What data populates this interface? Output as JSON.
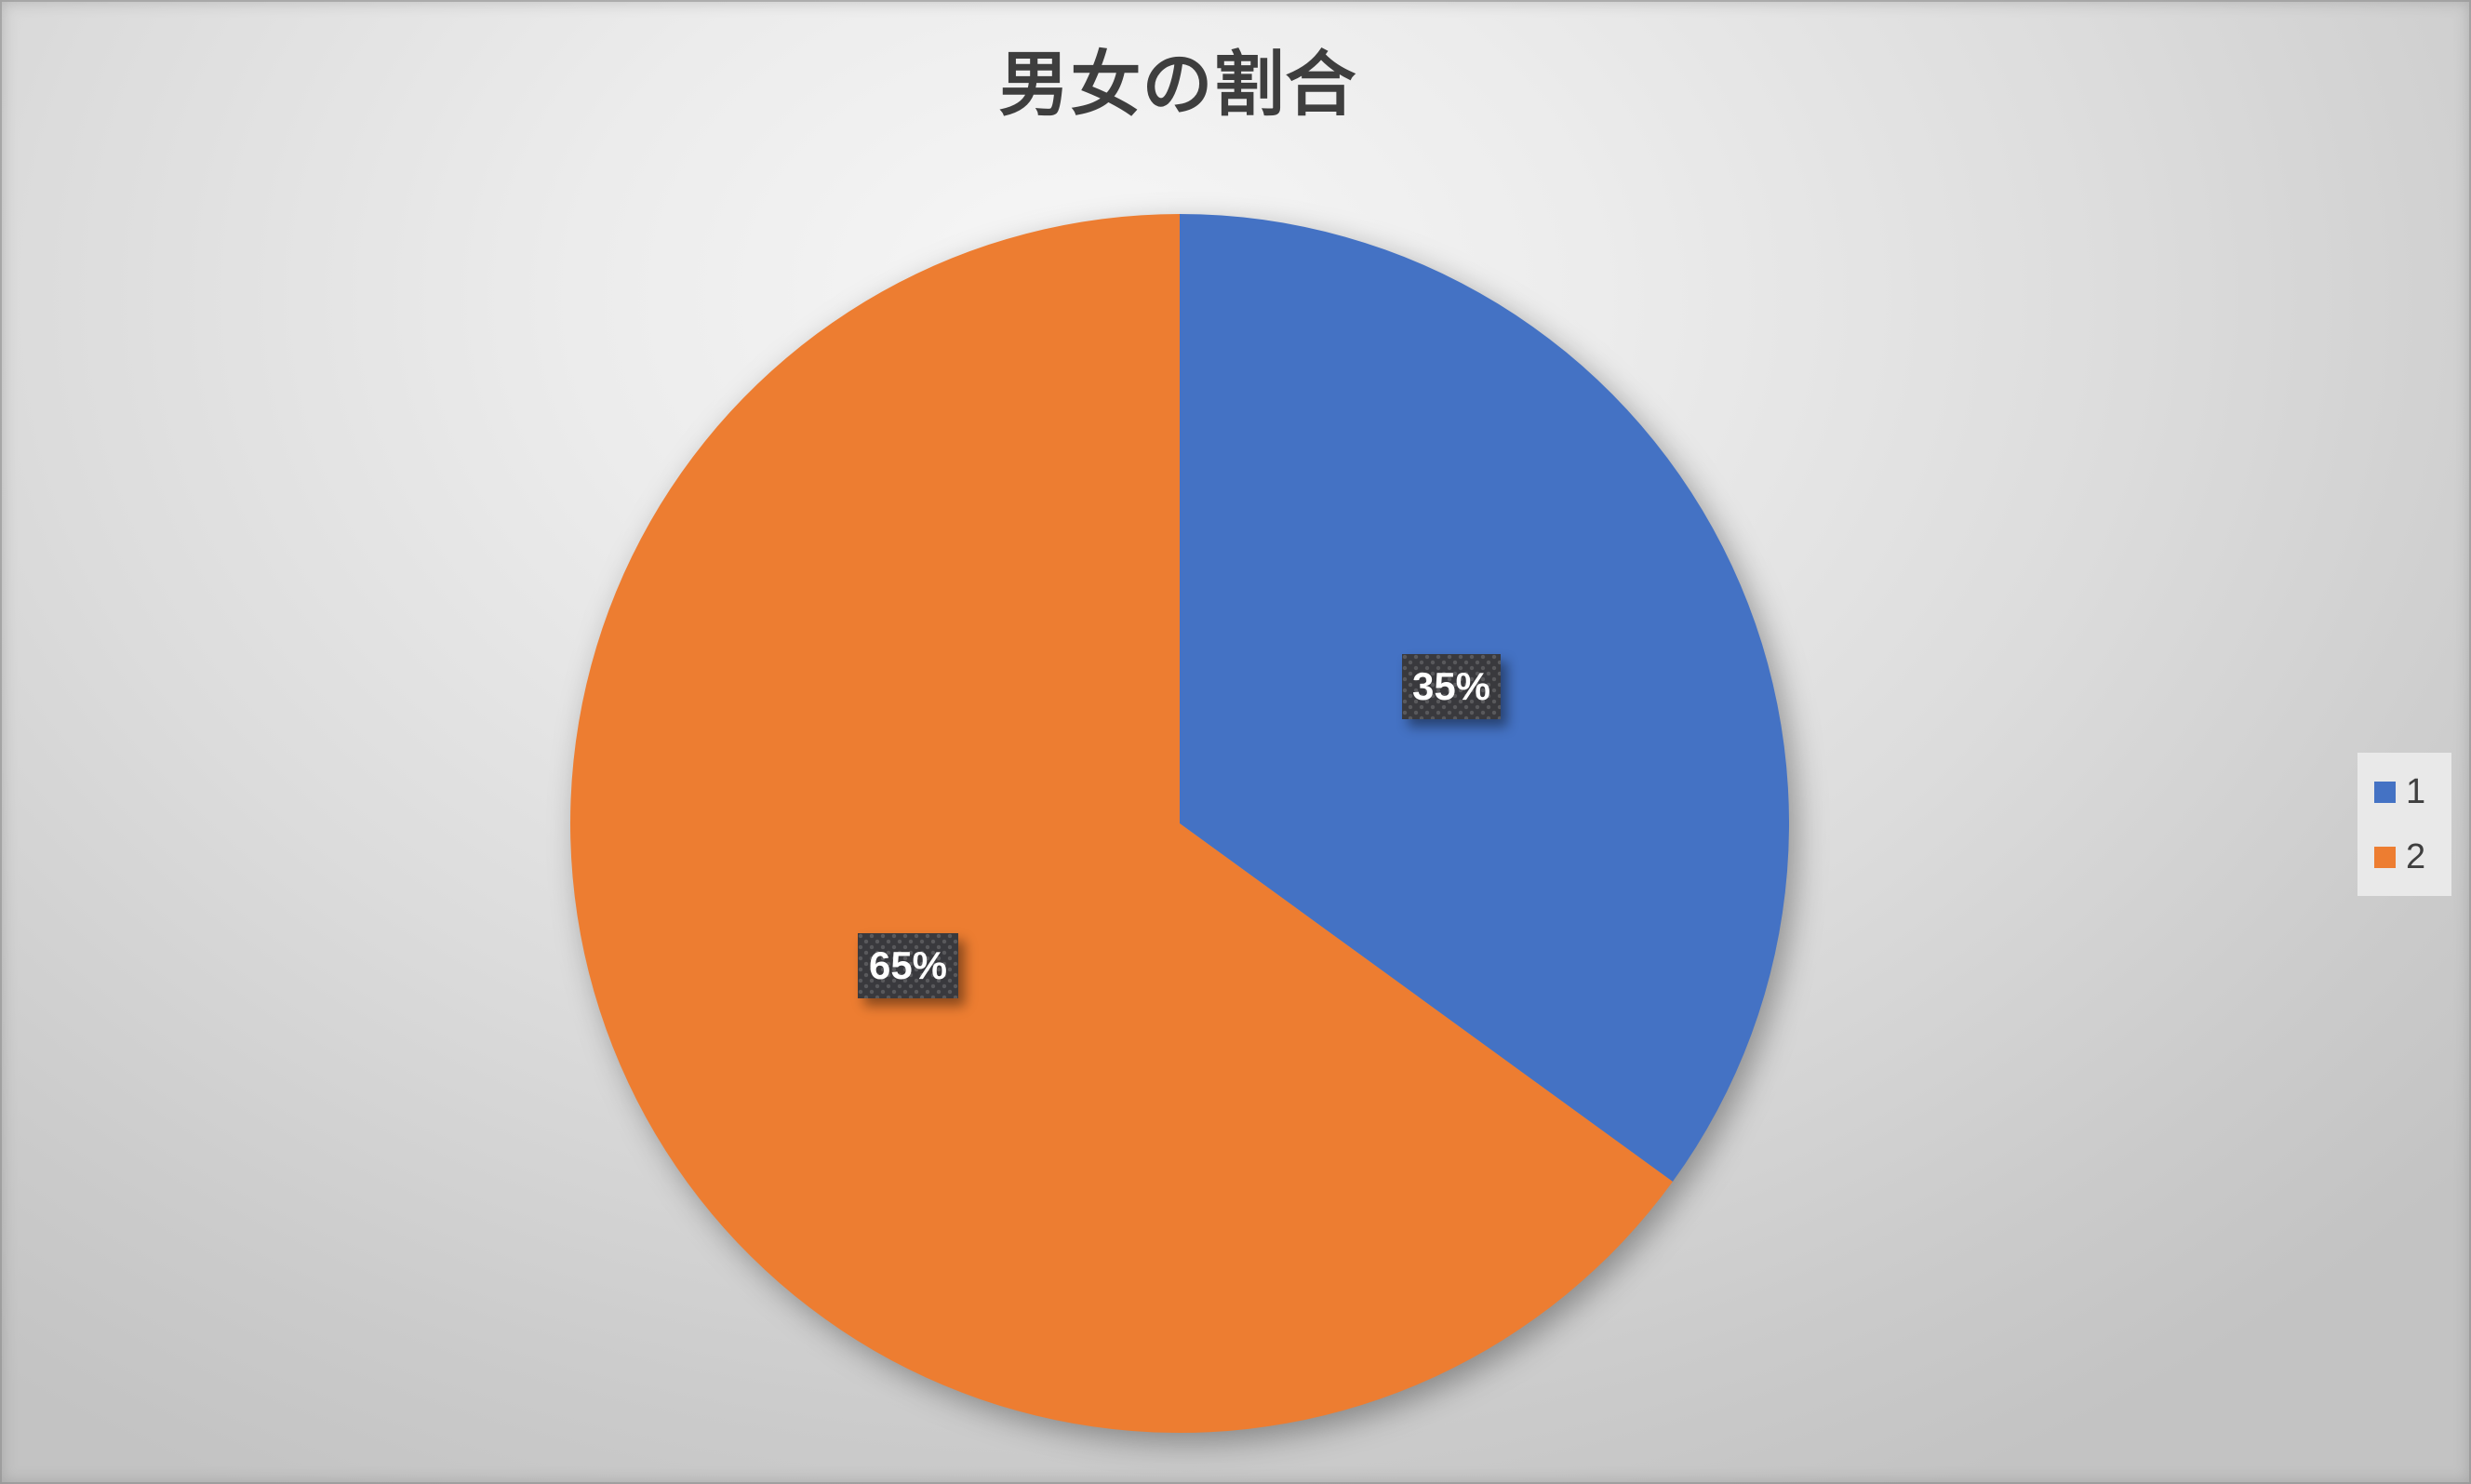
{
  "chart_data": {
    "type": "pie",
    "title": "男女の割合",
    "categories": [
      "1",
      "2"
    ],
    "values": [
      35,
      65
    ],
    "data_labels": [
      "35%",
      "65%"
    ],
    "colors": [
      "#4472C4",
      "#ED7D31"
    ],
    "label_style": {
      "text_color": "#FFFFFF",
      "box_color": "#39393D"
    },
    "legend_position": "right",
    "start_angle_deg": 0,
    "direction": "clockwise"
  },
  "legend": {
    "items": [
      {
        "label": "1",
        "color": "#4472C4"
      },
      {
        "label": "2",
        "color": "#ED7D31"
      }
    ]
  }
}
